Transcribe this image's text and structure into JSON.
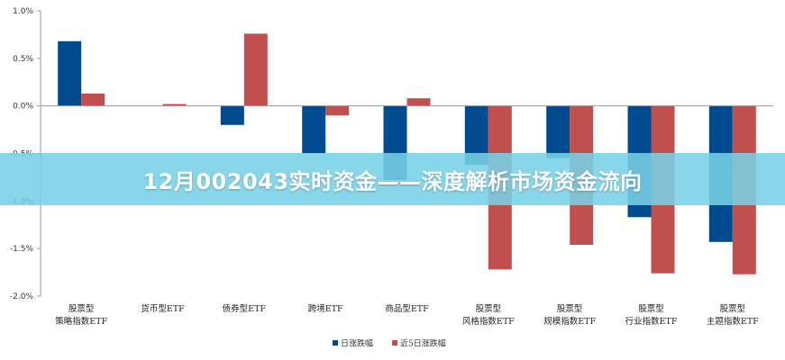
{
  "banner": {
    "title": "12月002043实时资金——深度解析市场资金流向"
  },
  "colors": {
    "series_blue": "#004a8f",
    "series_red": "#c0504d",
    "axis": "#999999",
    "banner": "#78d0e6"
  },
  "chart_data": {
    "type": "bar",
    "categories": [
      [
        "股票型",
        "策略指数ETF"
      ],
      [
        "货币型ETF"
      ],
      [
        "债券型ETF"
      ],
      [
        "跨境ETF"
      ],
      [
        "商品型ETF"
      ],
      [
        "股票型",
        "风格指数ETF"
      ],
      [
        "股票型",
        "规模指数ETF"
      ],
      [
        "股票型",
        "行业指数ETF"
      ],
      [
        "股票型",
        "主题指数ETF"
      ]
    ],
    "series": [
      {
        "name": "日涨跌幅",
        "values": [
          0.68,
          0.0,
          -0.2,
          -0.5,
          -0.78,
          -0.62,
          -0.55,
          -1.17,
          -1.43
        ]
      },
      {
        "name": "近5日涨跌幅",
        "values": [
          0.13,
          0.02,
          0.76,
          -0.1,
          0.08,
          -1.72,
          -1.46,
          -1.76,
          -1.77
        ]
      }
    ],
    "ylim": [
      -2.0,
      1.0
    ],
    "yticks": [
      "1.0%",
      "0.5%",
      "0.0%",
      "-0.5%",
      "-1.0%",
      "-1.5%",
      "-2.0%"
    ],
    "ytick_values": [
      1.0,
      0.5,
      0.0,
      -0.5,
      -1.0,
      -1.5,
      -2.0
    ],
    "legend_position": "bottom",
    "grid": false
  }
}
